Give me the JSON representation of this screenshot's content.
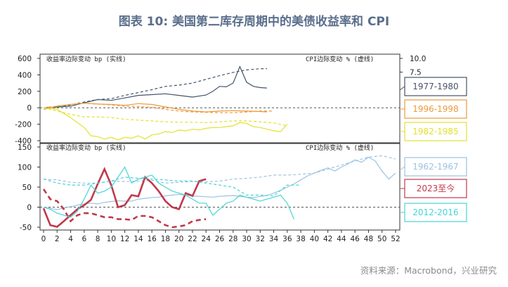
{
  "title": "图表 10: 美国第二库存周期中的美债收益率和 CPI",
  "source": "资料来源：Macrobond，兴业研究",
  "chart_data": [
    {
      "type": "line",
      "left_axis_label": "收益率边际变动 bp (实线)",
      "right_axis_label": "CPI边际变动 % (虚线)",
      "ylim": [
        -400,
        600
      ],
      "yticks": [
        600,
        400,
        200,
        0,
        -200,
        -400
      ],
      "right_ylim": [
        -5,
        10
      ],
      "right_yticks": [
        "10.0",
        "7.5"
      ],
      "xlim": [
        0,
        52
      ],
      "series": [
        {
          "name": "1977-1980",
          "color": "#44546a",
          "label_bg": "#ffffff",
          "yield_x": [
            0,
            2,
            4,
            6,
            8,
            10,
            12,
            14,
            16,
            18,
            20,
            22,
            24,
            25,
            26,
            27,
            28,
            29,
            30,
            31,
            32,
            33
          ],
          "yield_y": [
            0,
            10,
            20,
            60,
            100,
            90,
            120,
            150,
            160,
            170,
            150,
            130,
            155,
            200,
            260,
            255,
            300,
            500,
            310,
            260,
            245,
            240
          ],
          "cpi_x": [
            0,
            2,
            4,
            6,
            8,
            10,
            12,
            14,
            16,
            18,
            20,
            22,
            24,
            26,
            28,
            30,
            32,
            33
          ],
          "cpi_y": [
            0,
            5,
            35,
            70,
            100,
            110,
            150,
            185,
            220,
            260,
            275,
            300,
            345,
            390,
            430,
            460,
            475,
            475
          ]
        },
        {
          "name": "1996-1998",
          "color": "#ed9a3a",
          "label_bg": "#ffffff",
          "yield_x": [
            0,
            2,
            4,
            6,
            8,
            10,
            12,
            14,
            16,
            18,
            20,
            22,
            24,
            26,
            28,
            30,
            32,
            33
          ],
          "yield_y": [
            -20,
            20,
            40,
            55,
            45,
            40,
            30,
            50,
            40,
            10,
            -20,
            -40,
            -50,
            -40,
            -35,
            -40,
            -45,
            -50
          ],
          "cpi_x": [
            0,
            2,
            4,
            6,
            8,
            10,
            12,
            14,
            16,
            18,
            20,
            22,
            24,
            26,
            28,
            30,
            32,
            34
          ],
          "cpi_y": [
            0,
            20,
            40,
            55,
            45,
            35,
            20,
            15,
            5,
            -20,
            -40,
            -50,
            -55,
            -60,
            -60,
            -50,
            -40,
            -40
          ]
        },
        {
          "name": "1982-1985",
          "color": "#e3e12f",
          "label_bg": "#ffffff",
          "yield_x": [
            0,
            2,
            4,
            6,
            7,
            8,
            9,
            10,
            11,
            12,
            13,
            14,
            15,
            16,
            17,
            18,
            19,
            20,
            21,
            22,
            23,
            24,
            25,
            26,
            27,
            28,
            29,
            30,
            31,
            32,
            33,
            34,
            35,
            36
          ],
          "yield_y": [
            0,
            -20,
            -120,
            -240,
            -340,
            -350,
            -380,
            -360,
            -390,
            -360,
            -370,
            -340,
            -380,
            -330,
            -320,
            -290,
            -300,
            -270,
            -280,
            -260,
            -270,
            -250,
            -240,
            -240,
            -230,
            -220,
            -180,
            -190,
            -230,
            -240,
            -260,
            -280,
            -290,
            -200
          ],
          "cpi_x": [
            0,
            2,
            4,
            6,
            8,
            10,
            12,
            14,
            16,
            18,
            20,
            22,
            24,
            26,
            28,
            30,
            32,
            34,
            36
          ],
          "cpi_y": [
            0,
            -40,
            -80,
            -110,
            -110,
            -120,
            -140,
            -150,
            -160,
            -170,
            -175,
            -175,
            -180,
            -170,
            -160,
            -160,
            -170,
            -185,
            -220
          ]
        }
      ]
    },
    {
      "type": "line",
      "left_axis_label": "收益率边际变动 bp (实线)",
      "right_axis_label": "CPI边际变动 % (虚线)",
      "ylim": [
        -50,
        150
      ],
      "yticks": [
        150,
        100,
        50,
        0,
        -50
      ],
      "xlim": [
        0,
        52
      ],
      "xticks": [
        0,
        2,
        4,
        6,
        8,
        10,
        12,
        14,
        16,
        18,
        20,
        22,
        24,
        26,
        28,
        30,
        32,
        34,
        36,
        38,
        40,
        42,
        44,
        46,
        48,
        50,
        52
      ],
      "series": [
        {
          "name": "1962-1967",
          "color": "#9cc2e2",
          "label_bg": "#ffffff",
          "yield_x": [
            0,
            1,
            2,
            3,
            4,
            5,
            6,
            7,
            8,
            9,
            10,
            11,
            12,
            13,
            14,
            15,
            16,
            17,
            18,
            19,
            20,
            21,
            22,
            23,
            24,
            25,
            26,
            27,
            28,
            29,
            30,
            31,
            32,
            33,
            34,
            35,
            36,
            37,
            38,
            39,
            40,
            41,
            42,
            43,
            44,
            45,
            46,
            47,
            48,
            49,
            50,
            51,
            52
          ],
          "yield_y": [
            0,
            -3,
            -6,
            -2,
            1,
            5,
            8,
            10,
            8,
            12,
            14,
            16,
            15,
            15,
            20,
            22,
            24,
            25,
            28,
            30,
            32,
            30,
            28,
            27,
            26,
            25,
            27,
            28,
            29,
            27,
            25,
            24,
            27,
            29,
            35,
            42,
            50,
            58,
            68,
            78,
            85,
            92,
            98,
            90,
            100,
            108,
            118,
            112,
            125,
            115,
            90,
            70,
            85
          ],
          "cpi_x": [
            0,
            2,
            4,
            6,
            8,
            10,
            12,
            14,
            16,
            18,
            20,
            22,
            24,
            26,
            28,
            30,
            32,
            34,
            36,
            38,
            40,
            42,
            44,
            46,
            48,
            50,
            52
          ],
          "cpi_y": [
            70,
            68,
            62,
            60,
            60,
            65,
            64,
            65,
            67,
            60,
            62,
            64,
            63,
            65,
            70,
            72,
            75,
            80,
            80,
            82,
            85,
            95,
            105,
            115,
            125,
            128,
            120
          ]
        },
        {
          "name": "2023至今",
          "color": "#c0394a",
          "label_bg": "#ffffff",
          "yield_x": [
            0,
            1,
            2,
            3,
            4,
            5,
            6,
            7,
            8,
            9,
            10,
            11,
            12,
            13,
            14,
            15,
            16,
            17,
            18,
            19,
            20,
            21,
            22,
            23,
            24
          ],
          "yield_y": [
            -3,
            -45,
            -49,
            -35,
            -20,
            -5,
            5,
            18,
            58,
            95,
            55,
            0,
            5,
            30,
            27,
            75,
            60,
            40,
            15,
            0,
            -5,
            35,
            28,
            65,
            70
          ],
          "cpi_x": [
            0,
            1,
            2,
            3,
            4,
            5,
            6,
            7,
            8,
            9,
            10,
            11,
            12,
            13,
            14,
            15,
            16,
            17,
            18,
            19,
            20,
            21,
            22,
            23,
            24
          ],
          "cpi_y": [
            45,
            20,
            15,
            -5,
            -35,
            -20,
            -15,
            -15,
            -20,
            -25,
            -25,
            -30,
            -30,
            -32,
            -22,
            -22,
            -25,
            -35,
            -45,
            -50,
            -48,
            -45,
            -35,
            -32,
            -30
          ]
        },
        {
          "name": "2012-2016",
          "color": "#46d4d6",
          "label_bg": "#ffffff",
          "yield_x": [
            0,
            1,
            2,
            3,
            4,
            5,
            6,
            7,
            8,
            9,
            10,
            11,
            12,
            13,
            14,
            15,
            16,
            17,
            18,
            19,
            20,
            21,
            22,
            23,
            24,
            25,
            26,
            27,
            28,
            29,
            30,
            31,
            32,
            33,
            34,
            35,
            36,
            37
          ],
          "yield_y": [
            0,
            -5,
            -15,
            -20,
            -25,
            -10,
            20,
            55,
            35,
            40,
            50,
            75,
            100,
            60,
            70,
            75,
            80,
            60,
            50,
            40,
            35,
            30,
            20,
            10,
            10,
            -20,
            -5,
            10,
            15,
            30,
            25,
            20,
            15,
            20,
            25,
            30,
            10,
            -30
          ],
          "cpi_x": [
            0,
            2,
            4,
            6,
            8,
            10,
            12,
            14,
            16,
            18,
            20,
            22,
            24,
            26,
            28,
            30,
            32,
            34,
            36,
            38
          ],
          "cpi_y": [
            70,
            60,
            55,
            55,
            60,
            65,
            75,
            72,
            70,
            68,
            65,
            65,
            60,
            55,
            50,
            30,
            30,
            28,
            55,
            55
          ]
        }
      ]
    }
  ]
}
